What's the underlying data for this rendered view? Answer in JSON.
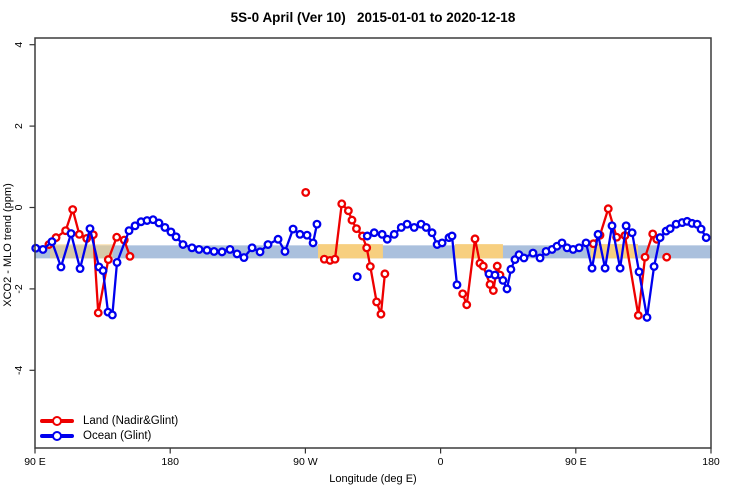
{
  "chart_data": {
    "type": "line",
    "title": "5S-0 April (Ver 10)   2015-01-01 to 2020-12-18",
    "xlabel": "Longitude (deg E)",
    "ylabel": "XCO2 - MLO trend (ppm)",
    "xlim": [
      90,
      540
    ],
    "ylim": [
      -5.9,
      4.2
    ],
    "grid": false,
    "legend_position": "bottom-left",
    "x_ticks": [
      {
        "pos": 90,
        "label": "90 E"
      },
      {
        "pos": 180,
        "label": "180"
      },
      {
        "pos": 270,
        "label": "90 W"
      },
      {
        "pos": 360,
        "label": "0"
      },
      {
        "pos": 450,
        "label": "90 E"
      },
      {
        "pos": 540,
        "label": "180"
      }
    ],
    "y_ticks": [
      {
        "pos": 4,
        "label": "4"
      },
      {
        "pos": 2,
        "label": "2"
      },
      {
        "pos": 0,
        "label": "0"
      },
      {
        "pos": -2,
        "label": "-2"
      },
      {
        "pos": -4,
        "label": "-4"
      }
    ],
    "bands": [
      {
        "name": "ocean-mean-band",
        "color": "#aac0dd",
        "x": [
          90,
          540
        ],
        "y": [
          -0.93,
          -1.25
        ],
        "opacity": 1
      },
      {
        "name": "land-mean-band",
        "color": "#f7cf7f",
        "x": [
          100,
          142
        ],
        "y": [
          -0.9,
          -1.25
        ],
        "opacity": 0.55
      },
      {
        "name": "land-mean-band",
        "color": "#f7cf7f",
        "x": [
          278.4,
          321.6
        ],
        "y": [
          -0.9,
          -1.25
        ],
        "opacity": 1
      },
      {
        "name": "land-mean-band",
        "color": "#f7cf7f",
        "x": [
          369.6,
          401.5
        ],
        "y": [
          -0.9,
          -1.25
        ],
        "opacity": 1
      },
      {
        "name": "land-mean-band",
        "color": "#f7cf7f",
        "x": [
          460,
          491.4
        ],
        "y": [
          -0.9,
          -1.25
        ],
        "opacity": 1
      }
    ],
    "series": [
      {
        "name": "Land (Nadir&Glint)",
        "color": "#ee0000",
        "marker": "open-circle",
        "segments": [
          [
            [
              99.3,
              -0.91
            ],
            [
              104,
              -0.74
            ],
            [
              110.4,
              -0.57
            ],
            [
              115.1,
              -0.05
            ],
            [
              119.5,
              -0.66
            ],
            [
              124.4,
              -0.76
            ],
            [
              128.8,
              -0.67
            ],
            [
              132.1,
              -2.59
            ],
            [
              138.8,
              -1.28
            ],
            [
              144.4,
              -0.73
            ],
            [
              149.4,
              -0.8
            ],
            [
              153.2,
              -1.2
            ]
          ],
          [
            [
              270.2,
              0.37
            ]
          ],
          [
            [
              282.6,
              -1.27
            ],
            [
              286.4,
              -1.3
            ],
            [
              289.7,
              -1.27
            ],
            [
              294.2,
              0.09
            ],
            [
              298.6,
              -0.08
            ],
            [
              301,
              -0.31
            ],
            [
              304,
              -0.52
            ],
            [
              308,
              -0.7
            ],
            [
              310.8,
              -0.99
            ],
            [
              313.2,
              -1.45
            ],
            [
              317.4,
              -2.32
            ],
            [
              320.3,
              -2.62
            ],
            [
              322.9,
              -1.63
            ]
          ],
          [
            [
              374.7,
              -2.12
            ],
            [
              377.4,
              -2.39
            ],
            [
              382.9,
              -0.77
            ],
            [
              386.2,
              -1.37
            ],
            [
              388.4,
              -1.44
            ],
            [
              392.9,
              -1.89
            ],
            [
              395.1,
              -2.04
            ],
            [
              397.7,
              -1.44
            ],
            [
              399.5,
              -1.66
            ]
          ],
          [
            [
              461.7,
              -0.89
            ],
            [
              466.1,
              -0.68
            ],
            [
              471.6,
              -0.03
            ],
            [
              477.2,
              -0.73
            ],
            [
              482.7,
              -0.69
            ],
            [
              491.6,
              -2.65
            ],
            [
              496.1,
              -1.22
            ],
            [
              501.2,
              -0.65
            ],
            [
              503.9,
              -0.78
            ]
          ],
          [
            [
              510.5,
              -1.22
            ]
          ]
        ]
      },
      {
        "name": "Ocean (Glint)",
        "color": "#0000ee",
        "marker": "open-circle",
        "segments": [
          [
            [
              90.5,
              -1.0
            ],
            [
              95.3,
              -1.03
            ],
            [
              101.3,
              -0.84
            ],
            [
              107.3,
              -1.46
            ],
            [
              114,
              -0.64
            ],
            [
              120,
              -1.5
            ],
            [
              126.6,
              -0.52
            ],
            [
              132.6,
              -1.46
            ],
            [
              135.3,
              -1.55
            ],
            [
              138.6,
              -2.57
            ],
            [
              141.5,
              -2.64
            ],
            [
              144.6,
              -1.35
            ],
            [
              152.6,
              -0.57
            ],
            [
              156.6,
              -0.45
            ],
            [
              160.6,
              -0.35
            ],
            [
              164.6,
              -0.32
            ],
            [
              168.6,
              -0.3
            ],
            [
              172.5,
              -0.38
            ],
            [
              176.5,
              -0.49
            ],
            [
              180.5,
              -0.6
            ],
            [
              183.9,
              -0.72
            ],
            [
              188.5,
              -0.91
            ],
            [
              194.5,
              -0.99
            ],
            [
              199.2,
              -1.03
            ],
            [
              204.5,
              -1.05
            ],
            [
              209.2,
              -1.08
            ],
            [
              214.5,
              -1.09
            ],
            [
              219.8,
              -1.03
            ],
            [
              224.5,
              -1.14
            ],
            [
              229.1,
              -1.23
            ],
            [
              234.5,
              -0.99
            ],
            [
              239.8,
              -1.09
            ],
            [
              245.1,
              -0.91
            ],
            [
              251.8,
              -0.78
            ],
            [
              256.4,
              -1.08
            ],
            [
              261.8,
              -0.53
            ],
            [
              266.4,
              -0.66
            ],
            [
              271.1,
              -0.68
            ],
            [
              275.1,
              -0.87
            ],
            [
              277.7,
              -0.41
            ]
          ],
          [
            [
              304.5,
              -1.7
            ]
          ],
          [
            [
              311.2,
              -0.7
            ],
            [
              315.8,
              -0.62
            ],
            [
              321.1,
              -0.66
            ],
            [
              324.5,
              -0.78
            ],
            [
              329.1,
              -0.66
            ],
            [
              333.8,
              -0.49
            ],
            [
              337.7,
              -0.41
            ],
            [
              342.4,
              -0.49
            ],
            [
              347,
              -0.41
            ],
            [
              350.4,
              -0.49
            ],
            [
              354.3,
              -0.62
            ],
            [
              357.7,
              -0.91
            ],
            [
              361,
              -0.87
            ],
            [
              365.6,
              -0.74
            ],
            [
              367.6,
              -0.7
            ],
            [
              370.9,
              -1.9
            ]
          ],
          [
            [
              392.2,
              -1.63
            ],
            [
              396.2,
              -1.66
            ],
            [
              401.5,
              -1.79
            ],
            [
              404.2,
              -2.0
            ],
            [
              406.8,
              -1.52
            ],
            [
              409.5,
              -1.28
            ],
            [
              412.2,
              -1.16
            ],
            [
              415.5,
              -1.24
            ],
            [
              421.5,
              -1.12
            ],
            [
              426.2,
              -1.24
            ],
            [
              430.2,
              -1.08
            ],
            [
              434.2,
              -1.03
            ],
            [
              437.5,
              -0.95
            ],
            [
              440.8,
              -0.87
            ],
            [
              444.2,
              -0.99
            ],
            [
              448.2,
              -1.03
            ],
            [
              452.2,
              -0.99
            ],
            [
              456.8,
              -0.87
            ],
            [
              460.8,
              -1.49
            ],
            [
              464.8,
              -0.66
            ],
            [
              469.5,
              -1.49
            ],
            [
              474.1,
              -0.45
            ],
            [
              479.5,
              -1.49
            ],
            [
              483.5,
              -0.45
            ],
            [
              487.5,
              -0.62
            ],
            [
              492.1,
              -1.58
            ],
            [
              497.4,
              -2.7
            ],
            [
              502.1,
              -1.45
            ],
            [
              506.1,
              -0.74
            ],
            [
              510.1,
              -0.58
            ],
            [
              512.8,
              -0.52
            ],
            [
              516.8,
              -0.41
            ],
            [
              520.8,
              -0.37
            ],
            [
              524.1,
              -0.34
            ],
            [
              527.4,
              -0.39
            ],
            [
              530.8,
              -0.41
            ],
            [
              533.4,
              -0.53
            ],
            [
              536.8,
              -0.74
            ]
          ]
        ]
      }
    ]
  }
}
